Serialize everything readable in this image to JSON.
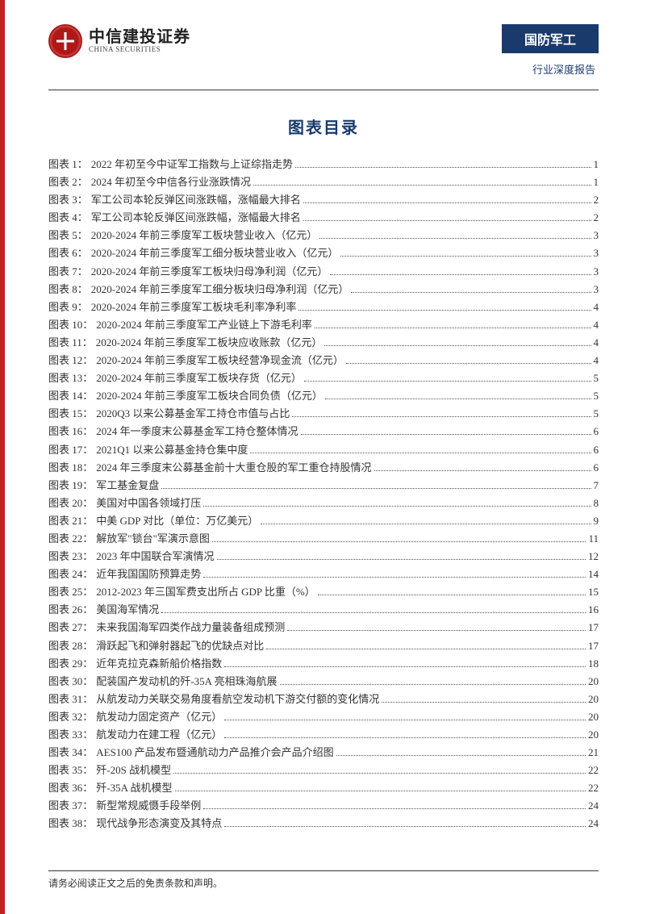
{
  "header": {
    "logo_cn": "中信建投证券",
    "logo_en": "CHINA SECURITIES",
    "category": "国防军工",
    "subcategory": "行业深度报告"
  },
  "title": "图表目录",
  "toc": [
    {
      "label": "图表 1：",
      "text": "2022 年初至今中证军工指数与上证综指走势",
      "page": "1"
    },
    {
      "label": "图表 2：",
      "text": "2024 年初至今中信各行业涨跌情况",
      "page": "1"
    },
    {
      "label": "图表 3：",
      "text": "军工公司本轮反弹区间涨跌幅，涨幅最大排名",
      "page": "2"
    },
    {
      "label": "图表 4：",
      "text": "军工公司本轮反弹区间涨跌幅，涨幅最大排名",
      "page": "2"
    },
    {
      "label": "图表 5：",
      "text": "2020-2024 年前三季度军工板块营业收入（亿元）",
      "page": "3"
    },
    {
      "label": "图表 6：",
      "text": "2020-2024 年前三季度军工细分板块营业收入（亿元）",
      "page": "3"
    },
    {
      "label": "图表 7：",
      "text": "2020-2024 年前三季度军工板块归母净利润（亿元）",
      "page": "3"
    },
    {
      "label": "图表 8：",
      "text": "2020-2024 年前三季度军工细分板块归母净利润（亿元）",
      "page": "3"
    },
    {
      "label": "图表 9：",
      "text": "2020-2024 年前三季度军工板块毛利率净利率",
      "page": "4"
    },
    {
      "label": "图表 10：",
      "text": "2020-2024 年前三季度军工产业链上下游毛利率",
      "page": "4"
    },
    {
      "label": "图表 11：",
      "text": "2020-2024 年前三季度军工板块应收账款（亿元）",
      "page": "4"
    },
    {
      "label": "图表 12：",
      "text": "2020-2024 年前三季度军工板块经营净现金流（亿元）",
      "page": "4"
    },
    {
      "label": "图表 13：",
      "text": "2020-2024 年前三季度军工板块存货（亿元）",
      "page": "5"
    },
    {
      "label": "图表 14：",
      "text": "2020-2024 年前三季度军工板块合同负债（亿元）",
      "page": "5"
    },
    {
      "label": "图表 15：",
      "text": "2020Q3 以来公募基金军工持仓市值与占比",
      "page": "5"
    },
    {
      "label": "图表 16：",
      "text": "2024 年一季度末公募基金军工持仓整体情况",
      "page": "6"
    },
    {
      "label": "图表 17：",
      "text": "2021Q1 以来公募基金持仓集中度",
      "page": "6"
    },
    {
      "label": "图表 18：",
      "text": "2024 年三季度末公募基金前十大重仓股的军工重仓持股情况",
      "page": "6"
    },
    {
      "label": "图表 19：",
      "text": "军工基金复盘",
      "page": "7"
    },
    {
      "label": "图表 20：",
      "text": "美国对中国各领域打压",
      "page": "8"
    },
    {
      "label": "图表 21：",
      "text": "中美 GDP 对比（单位：万亿美元）",
      "page": "9"
    },
    {
      "label": "图表 22：",
      "text": "解放军\"锁台\"军演示意图",
      "page": "11"
    },
    {
      "label": "图表 23：",
      "text": "2023 年中国联合军演情况",
      "page": "12"
    },
    {
      "label": "图表 24：",
      "text": "近年我国国防预算走势",
      "page": "14"
    },
    {
      "label": "图表 25：",
      "text": "2012-2023 年三国军费支出所占 GDP 比重（%）",
      "page": "15"
    },
    {
      "label": "图表 26：",
      "text": "美国海军情况",
      "page": "16"
    },
    {
      "label": "图表 27：",
      "text": "未来我国海军四类作战力量装备组成预测",
      "page": "17"
    },
    {
      "label": "图表 28：",
      "text": "滑跃起飞和弹射器起飞的优缺点对比",
      "page": "17"
    },
    {
      "label": "图表 29：",
      "text": "近年克拉克森新船价格指数",
      "page": "18"
    },
    {
      "label": "图表 30：",
      "text": "配装国产发动机的歼-35A 亮相珠海航展",
      "page": "20"
    },
    {
      "label": "图表 31：",
      "text": "从航发动力关联交易角度看航空发动机下游交付额的变化情况",
      "page": "20"
    },
    {
      "label": "图表 32：",
      "text": "航发动力固定资产（亿元）",
      "page": "20"
    },
    {
      "label": "图表 33：",
      "text": "航发动力在建工程（亿元）",
      "page": "20"
    },
    {
      "label": "图表 34：",
      "text": "AES100 产品发布暨通航动力产品推介会产品介绍图",
      "page": "21"
    },
    {
      "label": "图表 35：",
      "text": "歼-20S 战机模型",
      "page": "22"
    },
    {
      "label": "图表 36：",
      "text": "歼-35A 战机模型",
      "page": "22"
    },
    {
      "label": "图表 37：",
      "text": "新型常规威慑手段举例",
      "page": "24"
    },
    {
      "label": "图表 38：",
      "text": "现代战争形态演变及其特点",
      "page": "24"
    }
  ],
  "footer": "请务必阅读正文之后的免责条款和声明。",
  "colors": {
    "accent_red": "#c02020",
    "header_blue": "#1a3a6b",
    "text": "#333333"
  }
}
